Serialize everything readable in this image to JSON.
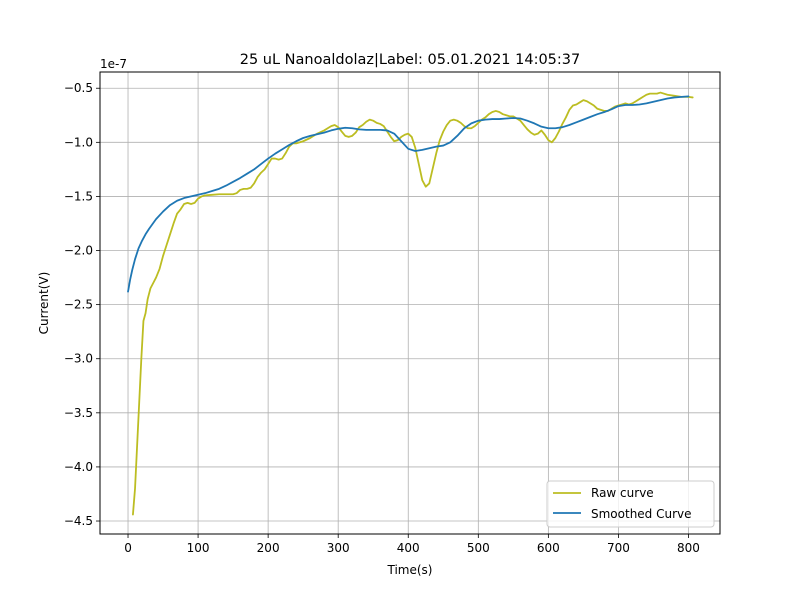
{
  "chart_data": {
    "type": "line",
    "title": "25 uL Nanoaldolaz|Label: 05.01.2021 14:05:37",
    "xlabel": "Time(s)",
    "ylabel": "Current(V)",
    "y_offset_text": "1e-7",
    "xlim": [
      -40,
      845
    ],
    "ylim": [
      -4.62,
      -0.35
    ],
    "x_ticks": [
      0,
      100,
      200,
      300,
      400,
      500,
      600,
      700,
      800
    ],
    "x_tick_labels": [
      "0",
      "100",
      "200",
      "300",
      "400",
      "500",
      "600",
      "700",
      "800"
    ],
    "y_ticks": [
      -4.5,
      -4.0,
      -3.5,
      -3.0,
      -2.5,
      -2.0,
      -1.5,
      -1.0,
      -0.5
    ],
    "y_tick_labels": [
      "−4.5",
      "−4.0",
      "−3.5",
      "−3.0",
      "−2.5",
      "−2.0",
      "−1.5",
      "−1.0",
      "−0.5"
    ],
    "grid": true,
    "legend_position": "lower-right",
    "series": [
      {
        "name": "Raw curve",
        "color": "#bcbd22",
        "x": [
          7,
          10,
          13,
          16,
          19,
          22,
          25,
          28,
          32,
          36,
          40,
          45,
          50,
          55,
          60,
          65,
          70,
          75,
          80,
          85,
          90,
          95,
          100,
          105,
          110,
          120,
          130,
          140,
          150,
          155,
          160,
          165,
          170,
          175,
          180,
          185,
          190,
          195,
          200,
          205,
          210,
          215,
          220,
          225,
          230,
          235,
          240,
          250,
          260,
          270,
          280,
          285,
          290,
          295,
          300,
          305,
          310,
          315,
          320,
          325,
          330,
          335,
          340,
          345,
          350,
          355,
          360,
          365,
          370,
          375,
          380,
          385,
          390,
          395,
          400,
          405,
          410,
          415,
          420,
          425,
          430,
          435,
          440,
          445,
          450,
          455,
          460,
          465,
          470,
          475,
          480,
          485,
          490,
          495,
          500,
          505,
          510,
          515,
          520,
          525,
          530,
          535,
          540,
          545,
          550,
          555,
          560,
          565,
          570,
          575,
          580,
          585,
          590,
          595,
          600,
          605,
          610,
          615,
          620,
          625,
          630,
          635,
          640,
          645,
          650,
          655,
          660,
          665,
          670,
          675,
          680,
          685,
          690,
          695,
          700,
          705,
          710,
          715,
          720,
          725,
          730,
          735,
          740,
          745,
          750,
          755,
          760,
          770,
          780,
          790,
          800,
          806
        ],
        "y": [
          -4.44,
          -4.2,
          -3.8,
          -3.4,
          -3.0,
          -2.65,
          -2.58,
          -2.45,
          -2.35,
          -2.3,
          -2.25,
          -2.17,
          -2.05,
          -1.95,
          -1.85,
          -1.75,
          -1.66,
          -1.62,
          -1.57,
          -1.56,
          -1.57,
          -1.56,
          -1.52,
          -1.5,
          -1.49,
          -1.485,
          -1.48,
          -1.48,
          -1.48,
          -1.47,
          -1.44,
          -1.43,
          -1.43,
          -1.42,
          -1.38,
          -1.32,
          -1.28,
          -1.25,
          -1.2,
          -1.15,
          -1.15,
          -1.16,
          -1.15,
          -1.1,
          -1.04,
          -1.01,
          -1.01,
          -0.99,
          -0.96,
          -0.92,
          -0.89,
          -0.87,
          -0.85,
          -0.84,
          -0.86,
          -0.9,
          -0.94,
          -0.95,
          -0.94,
          -0.91,
          -0.86,
          -0.84,
          -0.81,
          -0.79,
          -0.8,
          -0.82,
          -0.83,
          -0.85,
          -0.9,
          -0.95,
          -0.99,
          -0.98,
          -0.95,
          -0.93,
          -0.92,
          -0.95,
          -1.05,
          -1.2,
          -1.35,
          -1.41,
          -1.38,
          -1.24,
          -1.1,
          -0.98,
          -0.9,
          -0.84,
          -0.8,
          -0.79,
          -0.8,
          -0.82,
          -0.85,
          -0.87,
          -0.87,
          -0.85,
          -0.82,
          -0.79,
          -0.77,
          -0.74,
          -0.72,
          -0.71,
          -0.72,
          -0.74,
          -0.75,
          -0.76,
          -0.76,
          -0.78,
          -0.8,
          -0.84,
          -0.88,
          -0.91,
          -0.93,
          -0.92,
          -0.89,
          -0.93,
          -0.98,
          -1.0,
          -0.96,
          -0.9,
          -0.83,
          -0.77,
          -0.7,
          -0.66,
          -0.65,
          -0.63,
          -0.61,
          -0.62,
          -0.64,
          -0.66,
          -0.69,
          -0.7,
          -0.71,
          -0.71,
          -0.69,
          -0.67,
          -0.66,
          -0.65,
          -0.64,
          -0.65,
          -0.64,
          -0.62,
          -0.6,
          -0.58,
          -0.56,
          -0.55,
          -0.55,
          -0.55,
          -0.54,
          -0.56,
          -0.57,
          -0.58,
          -0.58,
          -0.585
        ]
      },
      {
        "name": "Smoothed Curve",
        "color": "#1f77b4",
        "x": [
          0,
          3,
          6,
          10,
          15,
          20,
          25,
          30,
          40,
          50,
          60,
          70,
          80,
          90,
          100,
          110,
          120,
          130,
          140,
          150,
          160,
          170,
          180,
          190,
          200,
          210,
          220,
          230,
          240,
          250,
          260,
          270,
          280,
          290,
          300,
          310,
          320,
          330,
          340,
          350,
          360,
          370,
          380,
          390,
          400,
          410,
          420,
          430,
          440,
          450,
          460,
          470,
          480,
          490,
          500,
          510,
          520,
          530,
          540,
          550,
          560,
          570,
          580,
          590,
          600,
          610,
          620,
          630,
          640,
          650,
          660,
          670,
          680,
          690,
          700,
          710,
          720,
          730,
          740,
          750,
          760,
          770,
          780,
          790,
          800
        ],
        "y": [
          -2.38,
          -2.27,
          -2.18,
          -2.08,
          -1.98,
          -1.91,
          -1.85,
          -1.8,
          -1.71,
          -1.64,
          -1.58,
          -1.54,
          -1.515,
          -1.5,
          -1.485,
          -1.47,
          -1.45,
          -1.43,
          -1.4,
          -1.365,
          -1.33,
          -1.29,
          -1.25,
          -1.2,
          -1.15,
          -1.105,
          -1.065,
          -1.025,
          -0.99,
          -0.96,
          -0.94,
          -0.925,
          -0.91,
          -0.89,
          -0.875,
          -0.865,
          -0.87,
          -0.88,
          -0.885,
          -0.885,
          -0.885,
          -0.89,
          -0.92,
          -0.99,
          -1.06,
          -1.08,
          -1.07,
          -1.055,
          -1.04,
          -1.03,
          -1.0,
          -0.94,
          -0.87,
          -0.825,
          -0.8,
          -0.79,
          -0.785,
          -0.785,
          -0.78,
          -0.775,
          -0.78,
          -0.8,
          -0.825,
          -0.855,
          -0.87,
          -0.87,
          -0.86,
          -0.84,
          -0.815,
          -0.79,
          -0.765,
          -0.74,
          -0.72,
          -0.695,
          -0.665,
          -0.655,
          -0.655,
          -0.65,
          -0.64,
          -0.625,
          -0.61,
          -0.595,
          -0.585,
          -0.58,
          -0.575
        ]
      }
    ]
  }
}
